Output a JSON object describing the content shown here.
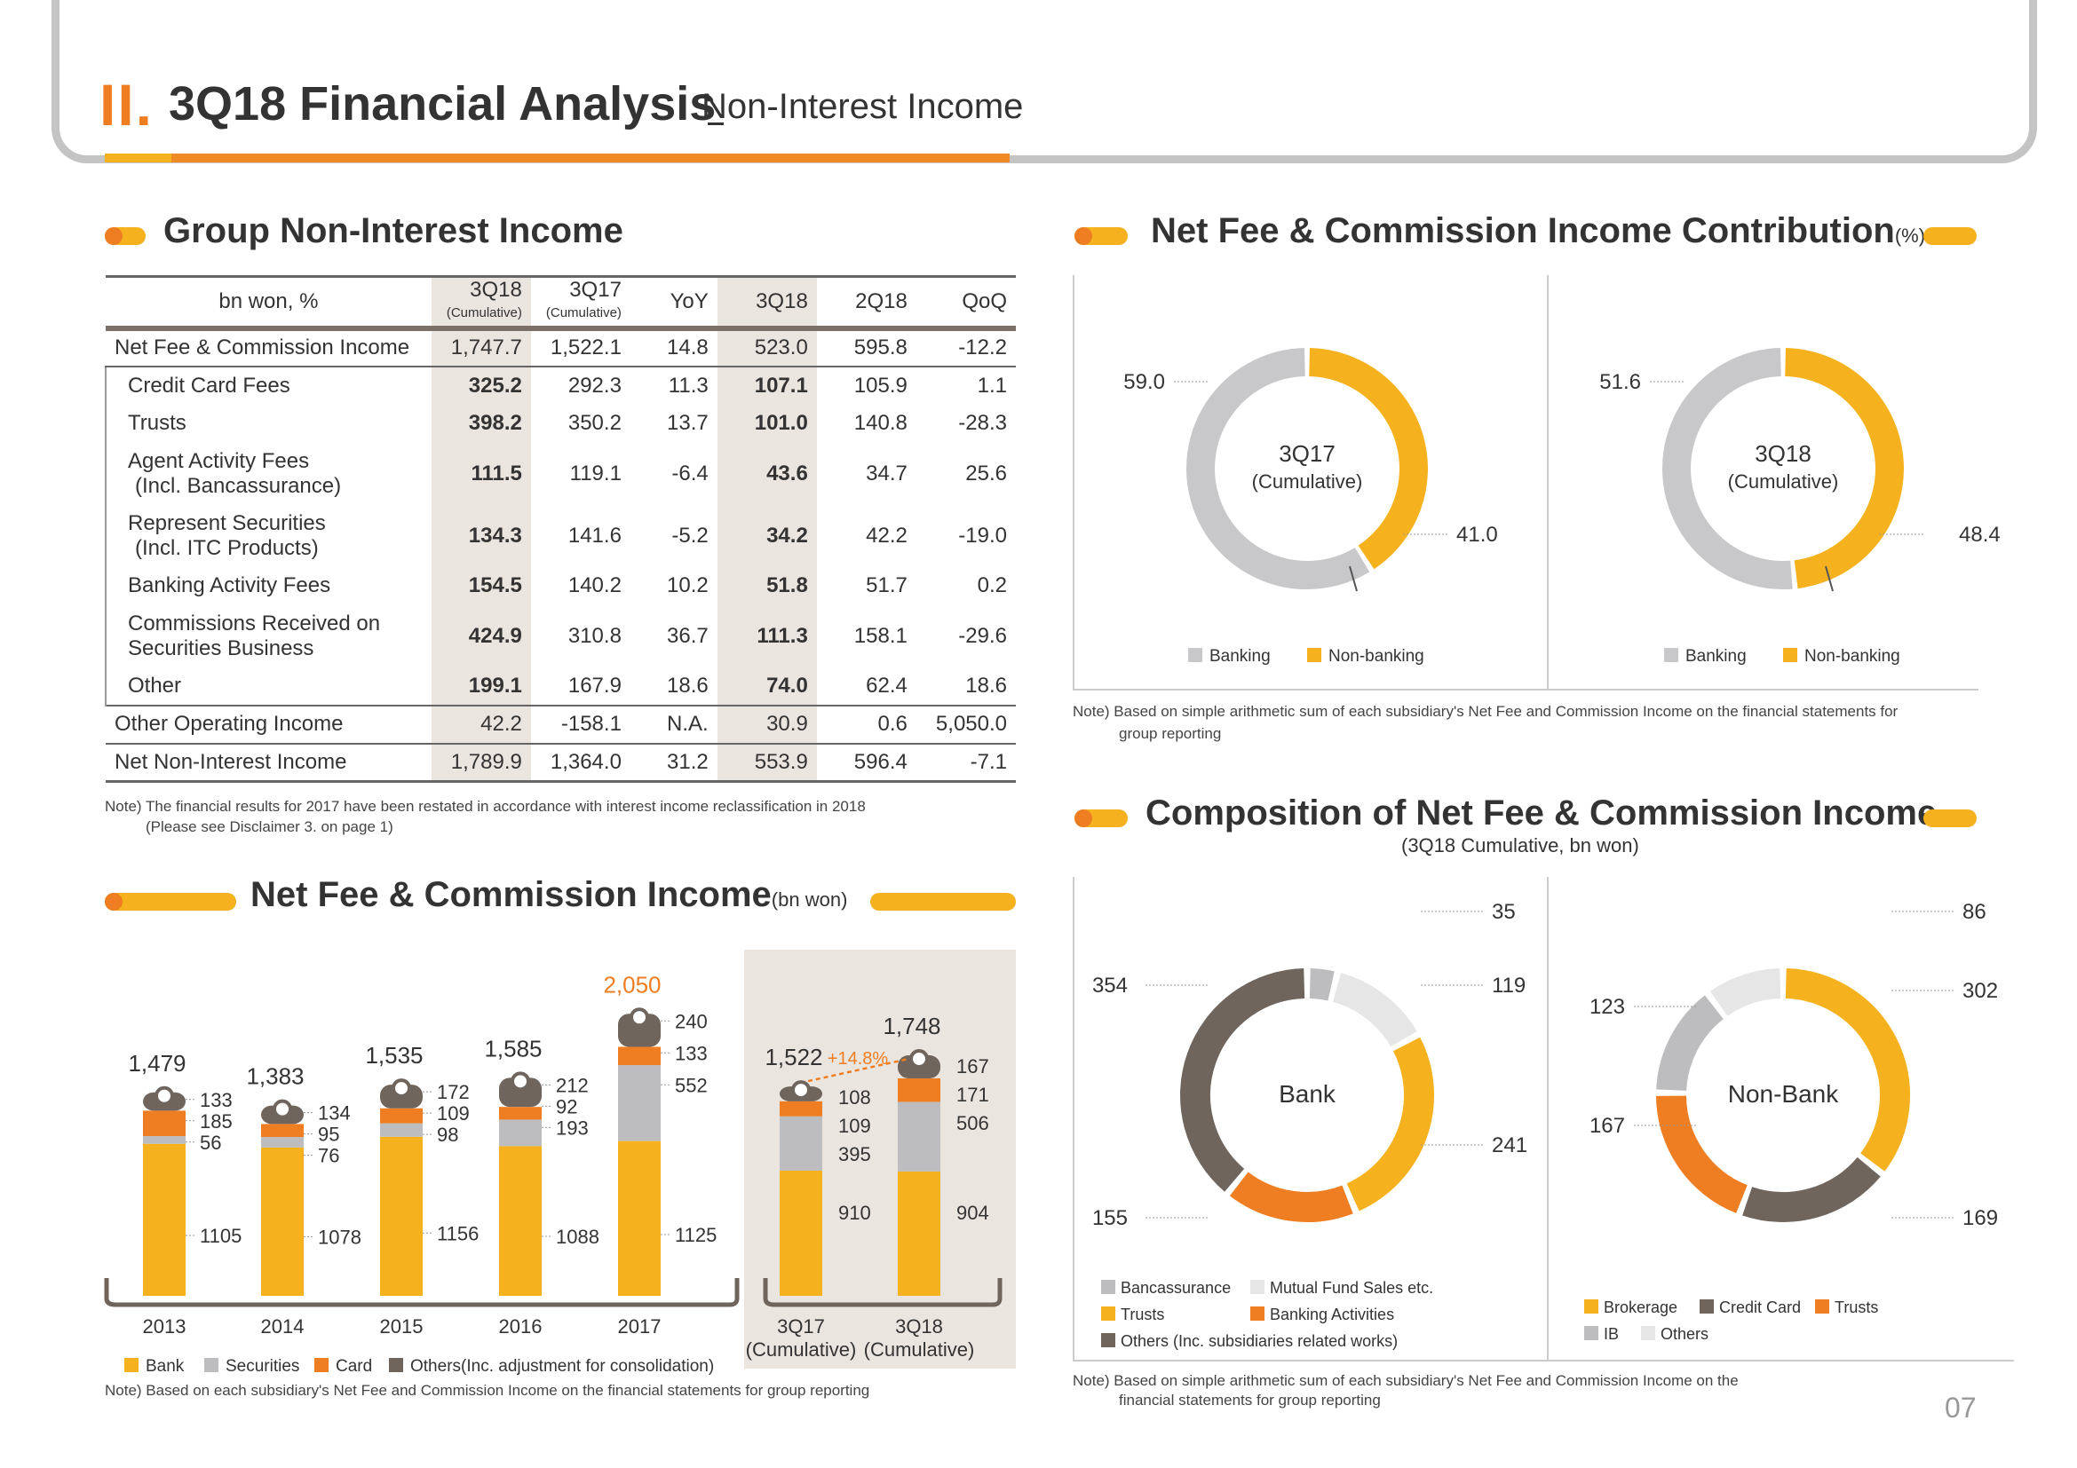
{
  "header": {
    "roman": "II.",
    "title": "3Q18 Financial Analysis",
    "subtitle": "Non-Interest Income",
    "page": "07"
  },
  "colors": {
    "bank": "#f5b11e",
    "securities": "#bdbdbf",
    "card": "#ef7d22",
    "others": "#6f655d",
    "gray": "#c8c8ca",
    "lightgray": "#e6e6e7"
  },
  "group": {
    "title": "Group Non-Interest Income",
    "columns": [
      "bn won, %",
      "3Q18",
      "3Q17",
      "YoY",
      "3Q18",
      "2Q18",
      "QoQ"
    ],
    "col_sub": [
      "(Cumulative)",
      "(Cumulative)"
    ],
    "rows": [
      {
        "label": "Net Fee & Commission Income",
        "v": [
          "1,747.7",
          "1,522.1",
          "14.8",
          "523.0",
          "595.8",
          "-12.2"
        ]
      },
      {
        "label": "Credit Card Fees",
        "v": [
          "325.2",
          "292.3",
          "11.3",
          "107.1",
          "105.9",
          "1.1"
        ]
      },
      {
        "label": "Trusts",
        "v": [
          "398.2",
          "350.2",
          "13.7",
          "101.0",
          "140.8",
          "-28.3"
        ]
      },
      {
        "label": "Agent Activity Fees",
        "label2": "(Incl. Bancassurance)",
        "v": [
          "111.5",
          "119.1",
          "-6.4",
          "43.6",
          "34.7",
          "25.6"
        ]
      },
      {
        "label": "Represent Securities",
        "label2": "(Incl. ITC Products)",
        "v": [
          "134.3",
          "141.6",
          "-5.2",
          "34.2",
          "42.2",
          "-19.0"
        ]
      },
      {
        "label": "Banking Activity Fees",
        "v": [
          "154.5",
          "140.2",
          "10.2",
          "51.8",
          "51.7",
          "0.2"
        ]
      },
      {
        "label": "Commissions Received on",
        "label2": "Securities Business",
        "v": [
          "424.9",
          "310.8",
          "36.7",
          "111.3",
          "158.1",
          "-29.6"
        ]
      },
      {
        "label": "Other",
        "v": [
          "199.1",
          "167.9",
          "18.6",
          "74.0",
          "62.4",
          "18.6"
        ]
      },
      {
        "label": "Other Operating Income",
        "v": [
          "42.2",
          "-158.1",
          "N.A.",
          "30.9",
          "0.6",
          "5,050.0"
        ]
      },
      {
        "label": "Net Non-Interest Income",
        "v": [
          "1,789.9",
          "1,364.0",
          "31.2",
          "553.9",
          "596.4",
          "-7.1"
        ]
      }
    ],
    "note1": "Note) The financial results for 2017 have been restated in accordance with interest income reclassification in 2018",
    "note2": "(Please see Disclaimer 3. on page 1)"
  },
  "contribution": {
    "title": "Net Fee & Commission Income Contribution",
    "unit": "(%)",
    "note1": "Note) Based on simple arithmetic sum of each subsidiary's Net Fee and Commission Income on the financial statements for",
    "note2": "group reporting"
  },
  "composition": {
    "title": "Composition of Net Fee & Commission Income",
    "subtitle": "(3Q18 Cumulative, bn won)",
    "note1": "Note) Based on simple arithmetic sum of each subsidiary's Net Fee and Commission Income on the",
    "note2": "financial statements for group reporting"
  },
  "netfee": {
    "title": "Net Fee & Commission Income",
    "unit": "(bn won)",
    "note": "Note) Based on each subsidiary's Net Fee and Commission Income on the financial statements for group reporting"
  },
  "chart_data": [
    {
      "type": "bar",
      "stacked": true,
      "title": "Net Fee & Commission Income",
      "unit": "bn won",
      "categories": [
        "2013",
        "2014",
        "2015",
        "2016",
        "2017",
        "3Q17 (Cumulative)",
        "3Q18 (Cumulative)"
      ],
      "category_lines": [
        [
          "2013"
        ],
        [
          "2014"
        ],
        [
          "2015"
        ],
        [
          "2016"
        ],
        [
          "2017"
        ],
        [
          "3Q17",
          "(Cumulative)"
        ],
        [
          "3Q18",
          "(Cumulative)"
        ]
      ],
      "totals": [
        "1,479",
        "1,383",
        "1,535",
        "1,585",
        "2,050",
        "1,522",
        "1,748"
      ],
      "total_values": [
        1479,
        1383,
        1535,
        1585,
        2050,
        1522,
        1748
      ],
      "series": [
        {
          "name": "Bank",
          "values": [
            1105,
            1078,
            1156,
            1088,
            1125,
            910,
            904
          ]
        },
        {
          "name": "Securities",
          "values": [
            56,
            76,
            98,
            193,
            552,
            395,
            506
          ]
        },
        {
          "name": "Card",
          "values": [
            185,
            95,
            109,
            92,
            133,
            109,
            171
          ]
        },
        {
          "name": "Others(Inc. adjustment for consolidation)",
          "values": [
            133,
            134,
            172,
            212,
            240,
            108,
            167
          ]
        }
      ],
      "growth_label": "+14.8%"
    },
    {
      "type": "pie",
      "title": "3Q17",
      "subtitle": "(Cumulative)",
      "labels": [
        "Banking",
        "Non-banking"
      ],
      "values": [
        59.0,
        41.0
      ],
      "value_labels": [
        "59.0",
        "41.0"
      ]
    },
    {
      "type": "pie",
      "title": "3Q18",
      "subtitle": "(Cumulative)",
      "labels": [
        "Banking",
        "Non-banking"
      ],
      "values": [
        51.6,
        48.4
      ],
      "value_labels": [
        "51.6",
        "48.4"
      ]
    },
    {
      "type": "pie",
      "title": "Bank",
      "labels": [
        "Bancassurance",
        "Mutual Fund Sales etc.",
        "Trusts",
        "Banking Activities",
        "Others (Inc. subsidiaries related works)"
      ],
      "values": [
        35,
        119,
        241,
        155,
        354
      ],
      "legend_rows": [
        [
          "Bancassurance",
          "Mutual Fund Sales etc."
        ],
        [
          "Trusts",
          "Banking Activities"
        ],
        [
          "Others (Inc. subsidiaries related works)"
        ]
      ]
    },
    {
      "type": "pie",
      "title": "Non-Bank",
      "labels": [
        "Brokerage",
        "Credit Card",
        "Trusts",
        "IB",
        "Others"
      ],
      "values": [
        302,
        169,
        167,
        123,
        86
      ],
      "legend_rows": [
        [
          "Brokerage",
          "Credit Card",
          "Trusts"
        ],
        [
          "IB",
          "Others"
        ]
      ]
    }
  ]
}
